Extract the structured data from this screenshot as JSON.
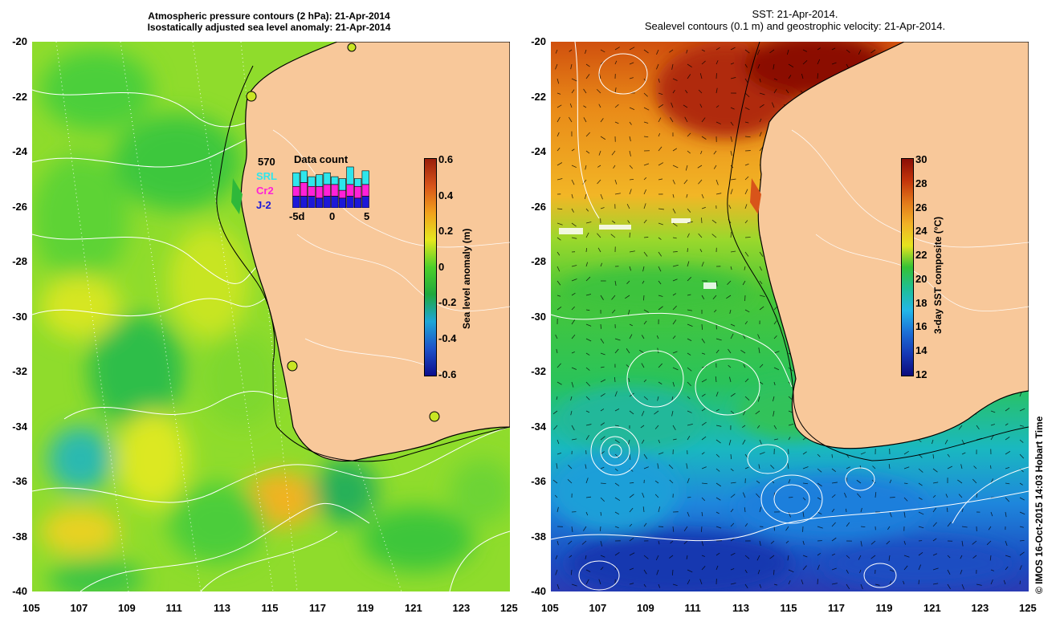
{
  "left_panel": {
    "title_line1": "Atmospheric pressure contours (2 hPa): 21-Apr-2014",
    "title_line2": "Isostatically adjusted sea level anomaly: 21-Apr-2014",
    "colorbar": {
      "label": "Sea level anomaly (m)",
      "ticks": [
        "0.6",
        "0.4",
        "0.2",
        "0",
        "-0.2",
        "-0.4",
        "-0.6"
      ],
      "colors": [
        "#9a1e0a",
        "#d8541a",
        "#f1a21c",
        "#e5e81e",
        "#4dcf2a",
        "#1fa83d",
        "#1ea6d6",
        "#1c52c9",
        "#0b0e8e"
      ]
    },
    "inset": {
      "title": "Data count",
      "total": "570",
      "legend": [
        {
          "name": "SRL",
          "color": "#2ee6ec"
        },
        {
          "name": "Cr2",
          "color": "#ff20d8"
        },
        {
          "name": "J-2",
          "color": "#1c18d8"
        }
      ],
      "x_ticks": [
        "-5d",
        "0",
        "5"
      ],
      "bars": [
        {
          "SRL": 0.35,
          "Cr2": 0.25,
          "J-2": 0.3
        },
        {
          "SRL": 0.3,
          "Cr2": 0.35,
          "J-2": 0.3
        },
        {
          "SRL": 0.25,
          "Cr2": 0.25,
          "J-2": 0.3
        },
        {
          "SRL": 0.3,
          "Cr2": 0.3,
          "J-2": 0.25
        },
        {
          "SRL": 0.3,
          "Cr2": 0.3,
          "J-2": 0.3
        },
        {
          "SRL": 0.2,
          "Cr2": 0.3,
          "J-2": 0.3
        },
        {
          "SRL": 0.3,
          "Cr2": 0.2,
          "J-2": 0.25
        },
        {
          "SRL": 0.45,
          "Cr2": 0.3,
          "J-2": 0.3
        },
        {
          "SRL": 0.2,
          "Cr2": 0.3,
          "J-2": 0.25
        },
        {
          "SRL": 0.35,
          "Cr2": 0.3,
          "J-2": 0.3
        }
      ]
    }
  },
  "right_panel": {
    "title_line1": "SST: 21-Apr-2014.",
    "title_line2": "Sealevel contours (0.1 m) and geostrophic velocity: 21-Apr-2014.",
    "colorbar": {
      "label": "3-day SST composite (°C)",
      "ticks": [
        "30",
        "28",
        "26",
        "24",
        "22",
        "20",
        "18",
        "16",
        "14",
        "12"
      ],
      "colors": [
        "#8b0e06",
        "#c3340a",
        "#e2781a",
        "#f2b126",
        "#e6e41e",
        "#35c235",
        "#1ebf96",
        "#23b7e8",
        "#1c70d6",
        "#1638b5",
        "#0c0b7c"
      ]
    }
  },
  "axes": {
    "x_ticks": [
      "105",
      "107",
      "109",
      "111",
      "113",
      "115",
      "117",
      "119",
      "121",
      "123",
      "125"
    ],
    "y_ticks": [
      "-20",
      "-22",
      "-24",
      "-26",
      "-28",
      "-30",
      "-32",
      "-34",
      "-36",
      "-38",
      "-40"
    ]
  },
  "credit": "© IMOS 16-Oct-2015 14:03 Hobart Time",
  "colors": {
    "land": "#f8c89a",
    "coastline": "#000000",
    "contour": "#ffffff"
  }
}
